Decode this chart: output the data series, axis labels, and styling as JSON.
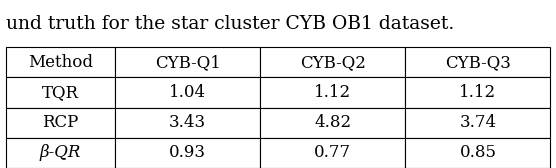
{
  "caption": "und truth for the star cluster CYB OB1 dataset.",
  "caption_fontsize": 13.5,
  "columns": [
    "Method",
    "CYB-Q1",
    "CYB-Q2",
    "CYB-Q3"
  ],
  "rows": [
    [
      "TQR",
      "1.04",
      "1.12",
      "1.12"
    ],
    [
      "RCP",
      "3.43",
      "4.82",
      "3.74"
    ],
    [
      "β-QR",
      "0.93",
      "0.77",
      "0.85"
    ]
  ],
  "background_color": "#ffffff",
  "text_color": "#000000",
  "fontsize": 12,
  "header_fontsize": 12,
  "figsize": [
    5.56,
    1.68
  ],
  "dpi": 100
}
